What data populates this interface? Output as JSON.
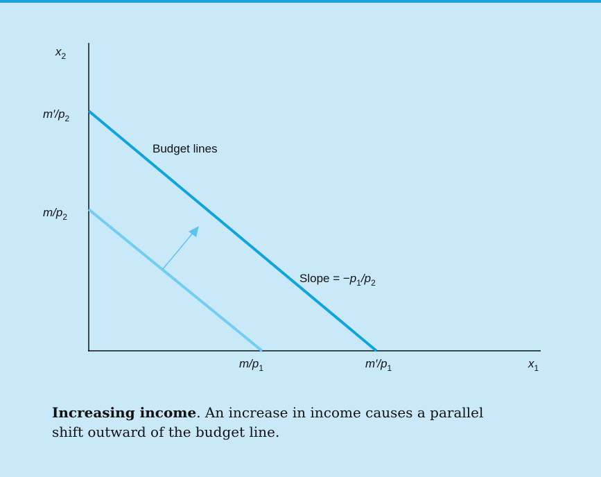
{
  "figure": {
    "labels": {
      "y_axis": [
        {
          "i": "x"
        },
        {
          "sub": "2"
        }
      ],
      "y_outer": [
        {
          "i": "m′/p"
        },
        {
          "sub": "2"
        }
      ],
      "y_inner": [
        {
          "i": "m/p"
        },
        {
          "sub": "2"
        }
      ],
      "lines_label": [
        {
          "t": "Budget lines"
        }
      ],
      "slope": [
        {
          "t": "Slope = −"
        },
        {
          "i": "p"
        },
        {
          "sub": "1"
        },
        {
          "i": "/p"
        },
        {
          "sub": "2"
        }
      ],
      "x_inner": [
        {
          "i": "m/p"
        },
        {
          "sub": "1"
        }
      ],
      "x_outer": [
        {
          "i": "m′/p"
        },
        {
          "sub": "1"
        }
      ],
      "x_axis": [
        {
          "i": "x"
        },
        {
          "sub": "1"
        }
      ]
    },
    "caption": {
      "title": "Increasing income",
      "lines": [
        ". An increase in income causes a parallel",
        "shift outward of the budget line."
      ]
    }
  }
}
